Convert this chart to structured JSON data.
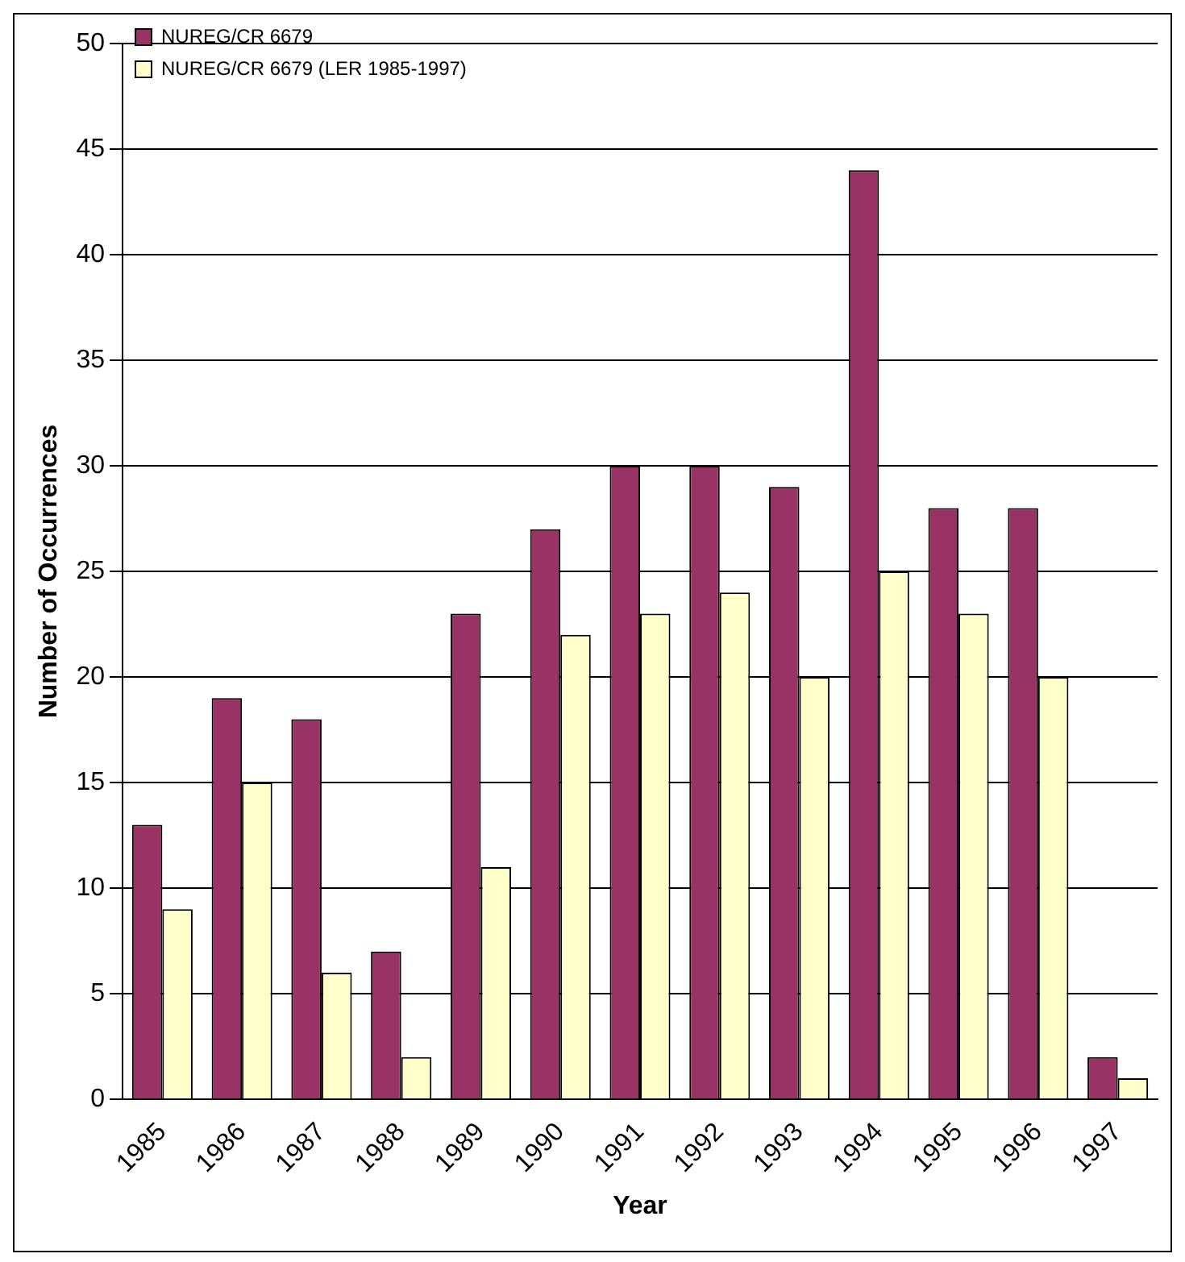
{
  "chart_data": {
    "type": "bar",
    "xlabel": "Year",
    "ylabel": "Number of Occurrences",
    "categories": [
      "1985",
      "1986",
      "1987",
      "1988",
      "1989",
      "1990",
      "1991",
      "1992",
      "1993",
      "1994",
      "1995",
      "1996",
      "1997"
    ],
    "series": [
      {
        "name": "NUREG/CR 6679",
        "color": "#993366",
        "values": [
          13,
          19,
          18,
          7,
          23,
          27,
          30,
          30,
          29,
          44,
          28,
          28,
          2
        ]
      },
      {
        "name": "NUREG/CR 6679 (LER 1985-1997)",
        "color": "#ffffcc",
        "values": [
          9,
          15,
          6,
          2,
          11,
          22,
          23,
          24,
          20,
          25,
          23,
          20,
          1
        ]
      }
    ],
    "ylim": [
      0,
      50
    ],
    "yticks": [
      0,
      5,
      10,
      15,
      20,
      25,
      30,
      35,
      40,
      45,
      50
    ],
    "grid": "y",
    "legend": "top left"
  }
}
